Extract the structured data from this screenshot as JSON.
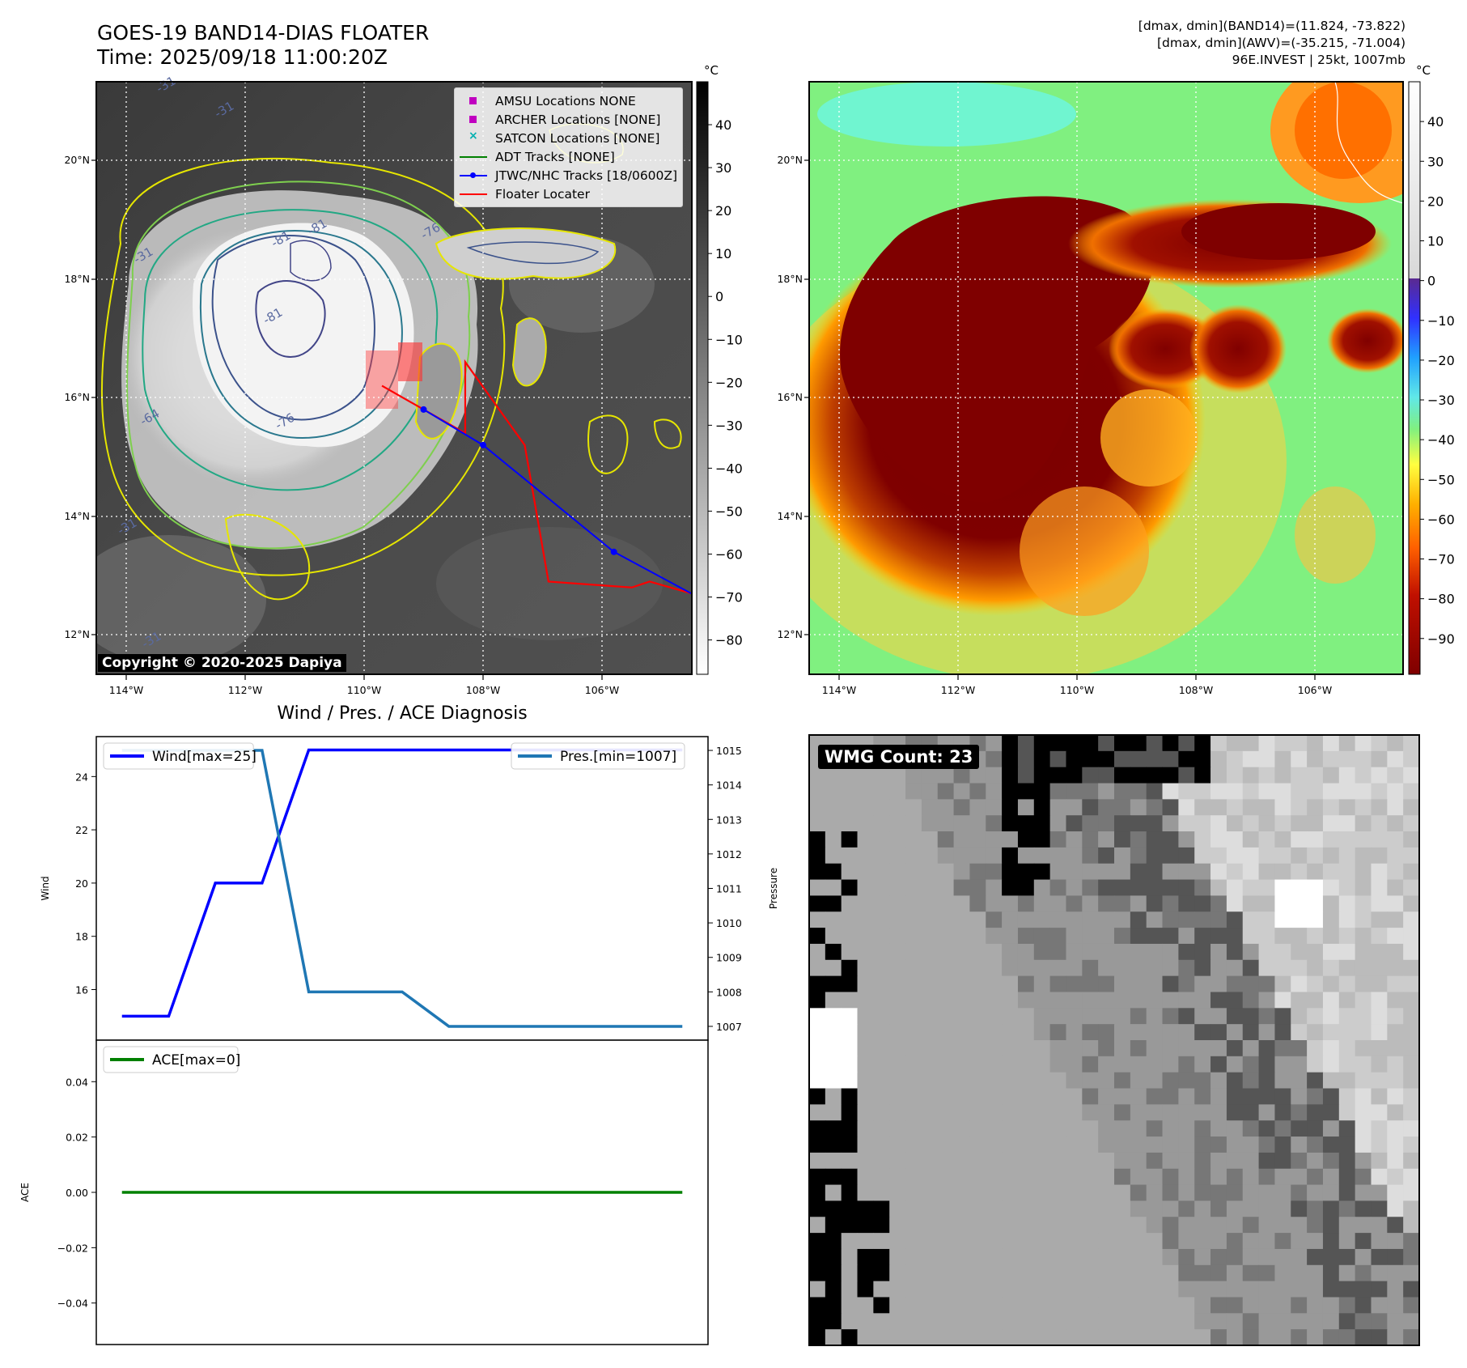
{
  "header": {
    "title_line1": "GOES-19 BAND14-DIAS FLOATER",
    "title_line2": "Time: 2025/09/18 11:00:20Z",
    "info_line1": "[dmax, dmin](BAND14)=(11.824, -73.822)",
    "info_line2": "[dmax, dmin](AWV)=(-35.215, -71.004)",
    "info_line3": "96E.INVEST | 25kt, 1007mb"
  },
  "map_axes": {
    "lon_labels": [
      "114°W",
      "112°W",
      "110°W",
      "108°W",
      "106°W"
    ],
    "lat_labels": [
      "20°N",
      "18°N",
      "16°N",
      "14°N",
      "12°N"
    ]
  },
  "colorbar_left": {
    "unit": "°C",
    "ticks": [
      "40",
      "30",
      "20",
      "10",
      "0",
      "−10",
      "−20",
      "−30",
      "−40",
      "−50",
      "−60",
      "−70",
      "−80"
    ]
  },
  "colorbar_right": {
    "unit": "°C",
    "ticks": [
      "40",
      "30",
      "20",
      "10",
      "0",
      "−10",
      "−20",
      "−30",
      "−40",
      "−50",
      "−60",
      "−70",
      "−80",
      "−90"
    ]
  },
  "legend": {
    "items": [
      {
        "label": "AMSU Locations NONE",
        "color": "#c000c0",
        "kind": "square"
      },
      {
        "label": "ARCHER Locations [NONE]",
        "color": "#c000c0",
        "kind": "square"
      },
      {
        "label": "SATCON Locations [NONE]",
        "color": "#00b0b0",
        "kind": "x"
      },
      {
        "label": "ADT Tracks [NONE]",
        "color": "#008000",
        "kind": "line"
      },
      {
        "label": "JTWC/NHC Tracks [18/0600Z]",
        "color": "#0000ff",
        "kind": "dotline"
      },
      {
        "label": "Floater Locater",
        "color": "#ff0000",
        "kind": "line"
      }
    ]
  },
  "copyright": "Copyright © 2020-2025 Dapiya",
  "contour_labels": [
    "-31",
    "-31",
    "-31",
    "-64",
    "-76",
    "-81",
    "-81",
    "-81",
    "-76",
    "-31",
    "-31"
  ],
  "diagnosis": {
    "title": "Wind / Pres. / ACE Diagnosis",
    "wind_legend": "Wind[max=25]",
    "pres_legend": "Pres.[min=1007]",
    "ace_legend": "ACE[max=0]",
    "wind_ylabel": "Wind",
    "pres_ylabel": "Pressure",
    "ace_ylabel": "ACE",
    "wind_ticks": [
      "24",
      "22",
      "20",
      "18",
      "16"
    ],
    "pres_ticks": [
      "1015",
      "1014",
      "1013",
      "1012",
      "1011",
      "1010",
      "1009",
      "1008",
      "1007"
    ],
    "ace_ticks": [
      "0.04",
      "0.02",
      "0.00",
      "−0.02",
      "−0.04"
    ]
  },
  "wmg": {
    "label": "WMG Count: 23"
  },
  "chart_data": [
    {
      "type": "line",
      "x": [
        0,
        1,
        2,
        3,
        4,
        5,
        6,
        7,
        8,
        9,
        10,
        11,
        12
      ],
      "series": [
        {
          "name": "Wind[max=25]",
          "axis": "left",
          "color": "#0000ff",
          "values": [
            15,
            15,
            20,
            20,
            25,
            25,
            25,
            25,
            25,
            25,
            25,
            25,
            25
          ]
        },
        {
          "name": "Pres.[min=1007]",
          "axis": "right",
          "color": "#1f77b4",
          "values": [
            1015,
            1015,
            1015,
            1015,
            1008,
            1008,
            1008,
            1007,
            1007,
            1007,
            1007,
            1007,
            1007
          ]
        }
      ],
      "ylim_left": [
        14.1,
        25.5
      ],
      "ylim_right": [
        1006.6,
        1015.4
      ],
      "ylabel": "Wind",
      "ylabel_right": "Pressure"
    },
    {
      "type": "line",
      "x": [
        0,
        1,
        2,
        3,
        4,
        5,
        6,
        7,
        8,
        9,
        10,
        11,
        12
      ],
      "series": [
        {
          "name": "ACE[max=0]",
          "color": "#008000",
          "values": [
            0,
            0,
            0,
            0,
            0,
            0,
            0,
            0,
            0,
            0,
            0,
            0,
            0
          ]
        }
      ],
      "ylim": [
        -0.055,
        0.055
      ],
      "ylabel": "ACE"
    },
    {
      "type": "line",
      "name": "JTWC/NHC Tracks [18/0600Z]",
      "lon": [
        -109.0,
        -108.0,
        -105.8,
        -104.5
      ],
      "lat": [
        15.8,
        15.2,
        13.4,
        12.7
      ]
    },
    {
      "type": "line",
      "name": "Floater Locater",
      "lon": [
        -109.7,
        -108.3,
        -108.3,
        -107.3,
        -106.9,
        -105.5,
        -105.2,
        -104.5
      ],
      "lat": [
        16.2,
        15.4,
        16.6,
        15.2,
        12.9,
        12.8,
        12.9,
        12.7
      ]
    }
  ]
}
